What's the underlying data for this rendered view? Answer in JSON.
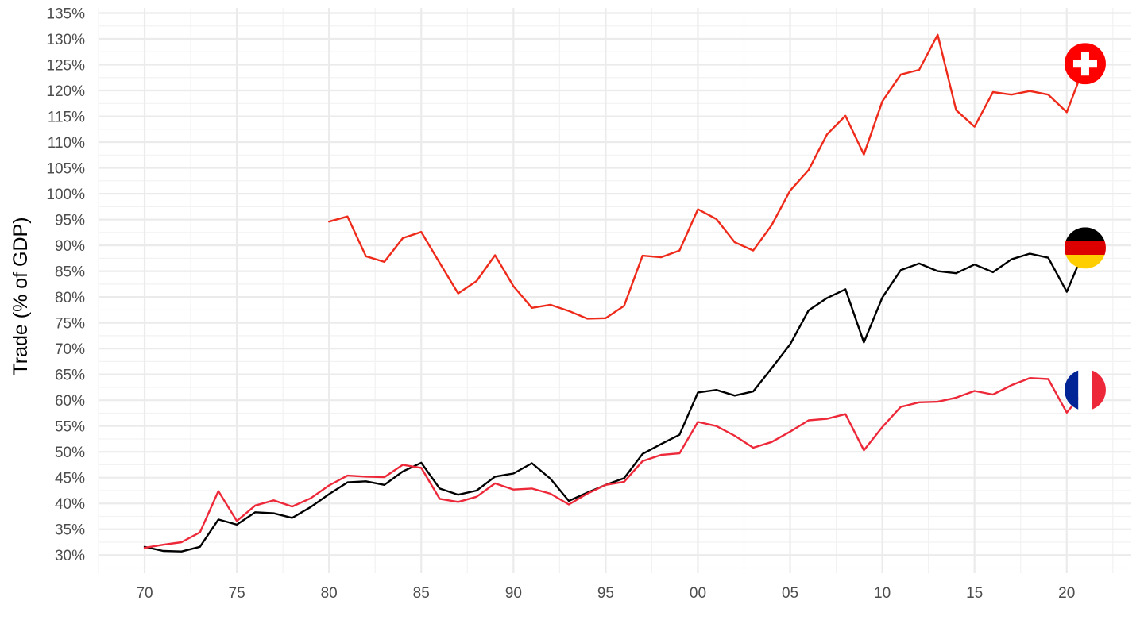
{
  "chart_data": {
    "type": "line",
    "title": "",
    "xlabel": "",
    "ylabel": "Trade (% of GDP)",
    "xlim": [
      1967.5,
      2023.5
    ],
    "ylim": [
      26.5,
      136
    ],
    "x_ticks": [
      {
        "value": 1970,
        "label": "70"
      },
      {
        "value": 1975,
        "label": "75"
      },
      {
        "value": 1980,
        "label": "80"
      },
      {
        "value": 1985,
        "label": "85"
      },
      {
        "value": 1990,
        "label": "90"
      },
      {
        "value": 1995,
        "label": "95"
      },
      {
        "value": 2000,
        "label": "00"
      },
      {
        "value": 2005,
        "label": "05"
      },
      {
        "value": 2010,
        "label": "10"
      },
      {
        "value": 2015,
        "label": "15"
      },
      {
        "value": 2020,
        "label": "20"
      }
    ],
    "y_ticks": [
      {
        "value": 30,
        "label": "30%"
      },
      {
        "value": 35,
        "label": "35%"
      },
      {
        "value": 40,
        "label": "40%"
      },
      {
        "value": 45,
        "label": "45%"
      },
      {
        "value": 50,
        "label": "50%"
      },
      {
        "value": 55,
        "label": "55%"
      },
      {
        "value": 60,
        "label": "60%"
      },
      {
        "value": 65,
        "label": "65%"
      },
      {
        "value": 70,
        "label": "70%"
      },
      {
        "value": 75,
        "label": "75%"
      },
      {
        "value": 80,
        "label": "80%"
      },
      {
        "value": 85,
        "label": "85%"
      },
      {
        "value": 90,
        "label": "90%"
      },
      {
        "value": 95,
        "label": "95%"
      },
      {
        "value": 100,
        "label": "100%"
      },
      {
        "value": 105,
        "label": "105%"
      },
      {
        "value": 110,
        "label": "110%"
      },
      {
        "value": 115,
        "label": "115%"
      },
      {
        "value": 120,
        "label": "120%"
      },
      {
        "value": 125,
        "label": "125%"
      },
      {
        "value": 130,
        "label": "130%"
      },
      {
        "value": 135,
        "label": "135%"
      }
    ],
    "grid": true,
    "legend": "flag icons at right end of each line",
    "series": [
      {
        "key": "switzerland",
        "color": "#ee2a1b",
        "icon": "switzerland-flag-icon",
        "x": [
          1980,
          1981,
          1982,
          1983,
          1984,
          1985,
          1986,
          1987,
          1988,
          1989,
          1990,
          1991,
          1992,
          1993,
          1994,
          1995,
          1996,
          1997,
          1998,
          1999,
          2000,
          2001,
          2002,
          2003,
          2004,
          2005,
          2006,
          2007,
          2008,
          2009,
          2010,
          2011,
          2012,
          2013,
          2014,
          2015,
          2016,
          2017,
          2018,
          2019,
          2020,
          2021
        ],
        "values": [
          94.6,
          95.6,
          87.9,
          86.8,
          91.4,
          92.6,
          86.6,
          80.7,
          83.1,
          88.1,
          82.1,
          77.9,
          78.5,
          77.3,
          75.8,
          75.9,
          78.3,
          88.0,
          87.7,
          89.0,
          97.0,
          95.1,
          90.6,
          89.0,
          93.9,
          100.6,
          104.6,
          111.5,
          115.1,
          107.6,
          117.9,
          123.1,
          124.0,
          130.8,
          116.2,
          113.0,
          119.7,
          119.2,
          119.9,
          119.2,
          115.8,
          125.2
        ]
      },
      {
        "key": "germany",
        "color": "#000000",
        "icon": "germany-flag-icon",
        "x": [
          1970,
          1971,
          1972,
          1973,
          1974,
          1975,
          1976,
          1977,
          1978,
          1979,
          1980,
          1981,
          1982,
          1983,
          1984,
          1985,
          1986,
          1987,
          1988,
          1989,
          1990,
          1991,
          1992,
          1993,
          1994,
          1995,
          1996,
          1997,
          1998,
          1999,
          2000,
          2001,
          2002,
          2003,
          2004,
          2005,
          2006,
          2007,
          2008,
          2009,
          2010,
          2011,
          2012,
          2013,
          2014,
          2015,
          2016,
          2017,
          2018,
          2019,
          2020,
          2021
        ],
        "values": [
          31.6,
          30.8,
          30.7,
          31.6,
          36.9,
          35.9,
          38.3,
          38.1,
          37.2,
          39.3,
          41.8,
          44.1,
          44.3,
          43.6,
          46.2,
          47.9,
          42.9,
          41.7,
          42.5,
          45.2,
          45.8,
          47.8,
          44.8,
          40.5,
          42.1,
          43.6,
          44.9,
          49.6,
          51.5,
          53.3,
          61.5,
          62.0,
          60.9,
          61.7,
          66.2,
          70.8,
          77.4,
          79.8,
          81.5,
          71.2,
          79.9,
          85.2,
          86.5,
          85.0,
          84.6,
          86.3,
          84.8,
          87.3,
          88.4,
          87.6,
          81.0,
          89.5
        ]
      },
      {
        "key": "france",
        "color": "#ed2939",
        "icon": "france-flag-icon",
        "x": [
          1970,
          1971,
          1972,
          1973,
          1974,
          1975,
          1976,
          1977,
          1978,
          1979,
          1980,
          1981,
          1982,
          1983,
          1984,
          1985,
          1986,
          1987,
          1988,
          1989,
          1990,
          1991,
          1992,
          1993,
          1994,
          1995,
          1996,
          1997,
          1998,
          1999,
          2000,
          2001,
          2002,
          2003,
          2004,
          2005,
          2006,
          2007,
          2008,
          2009,
          2010,
          2011,
          2012,
          2013,
          2014,
          2015,
          2016,
          2017,
          2018,
          2019,
          2020,
          2021
        ],
        "values": [
          31.4,
          32.0,
          32.5,
          34.4,
          42.4,
          36.6,
          39.6,
          40.6,
          39.4,
          41.0,
          43.5,
          45.4,
          45.2,
          45.1,
          47.5,
          46.9,
          40.9,
          40.3,
          41.3,
          43.9,
          42.7,
          42.9,
          41.9,
          39.8,
          41.9,
          43.6,
          44.2,
          48.2,
          49.4,
          49.7,
          55.8,
          55.0,
          53.1,
          50.8,
          51.9,
          53.9,
          56.1,
          56.4,
          57.3,
          50.3,
          54.8,
          58.7,
          59.6,
          59.7,
          60.5,
          61.8,
          61.1,
          62.9,
          64.3,
          64.1,
          57.6,
          62.0
        ]
      }
    ]
  }
}
